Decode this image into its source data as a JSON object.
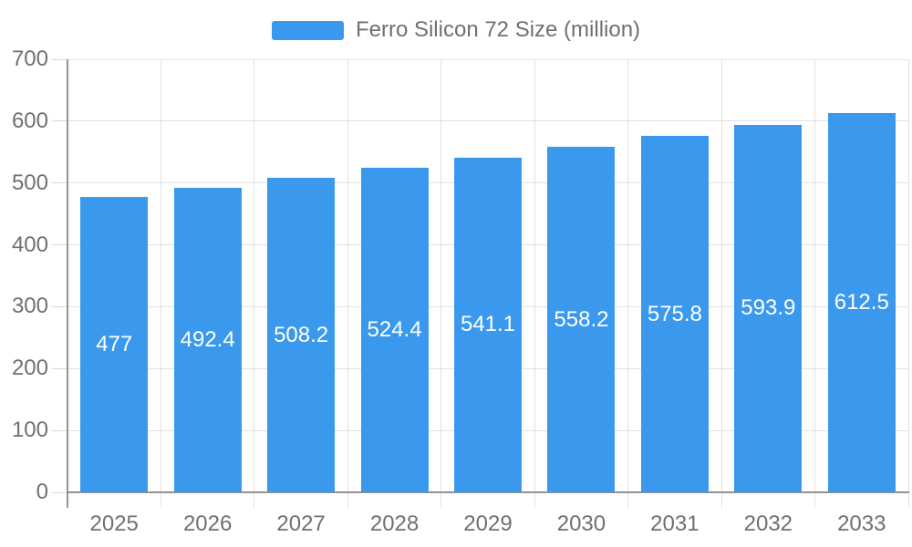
{
  "chart_data": {
    "type": "bar",
    "title": "",
    "xlabel": "",
    "ylabel": "",
    "categories": [
      "2025",
      "2026",
      "2027",
      "2028",
      "2029",
      "2030",
      "2031",
      "2032",
      "2033"
    ],
    "series": [
      {
        "name": "Ferro Silicon 72 Size (million)",
        "values": [
          477,
          492.4,
          508.2,
          524.4,
          541.1,
          558.2,
          575.8,
          593.9,
          612.5
        ],
        "color": "#3A99EC"
      }
    ],
    "value_labels": [
      "477",
      "492.4",
      "508.2",
      "524.4",
      "541.1",
      "558.2",
      "575.8",
      "593.9",
      "612.5"
    ],
    "ylim": [
      0,
      700
    ],
    "ytick_step": 100,
    "ytick_labels": [
      "0",
      "100",
      "200",
      "300",
      "400",
      "500",
      "600",
      "700"
    ],
    "grid": true,
    "legend_position": "top-center",
    "value_label_position": "inside-center",
    "colors": {
      "bar": "#3A99EC",
      "value_label": "#FFFFFF",
      "axis_text": "#707070",
      "grid_line": "#E2E2E2",
      "tick_line": "#D9D9D9",
      "axis_line": "#949494",
      "background": "#FFFFFF"
    }
  }
}
